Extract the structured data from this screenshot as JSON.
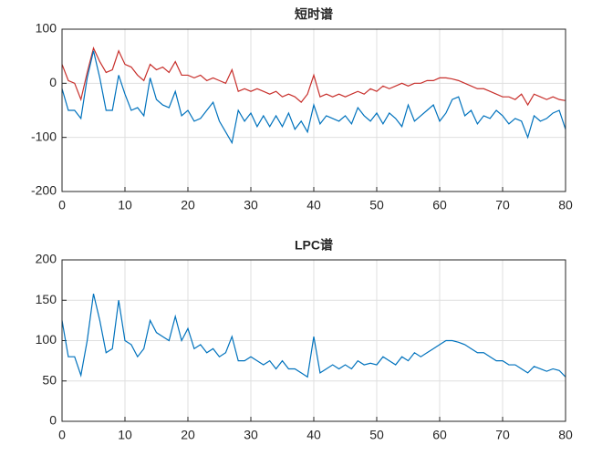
{
  "chart_data": [
    {
      "type": "line",
      "title": "短时谱",
      "x": [
        0,
        1,
        2,
        3,
        4,
        5,
        6,
        7,
        8,
        9,
        10,
        11,
        12,
        13,
        14,
        15,
        16,
        17,
        18,
        19,
        20,
        21,
        22,
        23,
        24,
        25,
        26,
        27,
        28,
        29,
        30,
        31,
        32,
        33,
        34,
        35,
        36,
        37,
        38,
        39,
        40,
        41,
        42,
        43,
        44,
        45,
        46,
        47,
        48,
        49,
        50,
        51,
        52,
        53,
        54,
        55,
        56,
        57,
        58,
        59,
        60,
        61,
        62,
        63,
        64,
        65,
        66,
        67,
        68,
        69,
        70,
        71,
        72,
        73,
        74,
        75,
        76,
        77,
        78,
        79,
        80
      ],
      "series": [
        {
          "color": "#c8302c",
          "values": [
            35,
            5,
            0,
            -30,
            20,
            65,
            40,
            20,
            25,
            60,
            35,
            30,
            15,
            5,
            35,
            25,
            30,
            20,
            40,
            15,
            15,
            10,
            15,
            5,
            10,
            5,
            0,
            25,
            -15,
            -10,
            -15,
            -10,
            -15,
            -20,
            -15,
            -25,
            -20,
            -25,
            -35,
            -20,
            15,
            -25,
            -20,
            -25,
            -20,
            -25,
            -20,
            -15,
            -20,
            -10,
            -15,
            -5,
            -10,
            -5,
            0,
            -5,
            0,
            0,
            5,
            5,
            10,
            10,
            8,
            5,
            0,
            -5,
            -10,
            -10,
            -15,
            -20,
            -25,
            -25,
            -30,
            -20,
            -40,
            -20,
            -25,
            -30,
            -25,
            -30,
            -32
          ]
        },
        {
          "color": "#0072bd",
          "values": [
            -10,
            -50,
            -50,
            -65,
            10,
            60,
            10,
            -50,
            -50,
            15,
            -20,
            -50,
            -45,
            -60,
            10,
            -30,
            -40,
            -45,
            -15,
            -60,
            -50,
            -70,
            -65,
            -50,
            -35,
            -70,
            -90,
            -110,
            -50,
            -70,
            -55,
            -80,
            -60,
            -80,
            -60,
            -80,
            -55,
            -85,
            -70,
            -90,
            -40,
            -75,
            -60,
            -65,
            -70,
            -60,
            -75,
            -45,
            -60,
            -70,
            -55,
            -75,
            -55,
            -65,
            -80,
            -40,
            -70,
            -60,
            -50,
            -40,
            -70,
            -55,
            -30,
            -25,
            -60,
            -50,
            -75,
            -60,
            -65,
            -50,
            -60,
            -75,
            -65,
            -70,
            -100,
            -60,
            -70,
            -65,
            -55,
            -50,
            -85
          ]
        }
      ],
      "xlim": [
        0,
        80
      ],
      "xticks": [
        0,
        10,
        20,
        30,
        40,
        50,
        60,
        70,
        80
      ],
      "ylim": [
        -200,
        100
      ],
      "yticks": [
        -200,
        -100,
        0,
        100
      ],
      "grid": true
    },
    {
      "type": "line",
      "title": "LPC谱",
      "x": [
        0,
        1,
        2,
        3,
        4,
        5,
        6,
        7,
        8,
        9,
        10,
        11,
        12,
        13,
        14,
        15,
        16,
        17,
        18,
        19,
        20,
        21,
        22,
        23,
        24,
        25,
        26,
        27,
        28,
        29,
        30,
        31,
        32,
        33,
        34,
        35,
        36,
        37,
        38,
        39,
        40,
        41,
        42,
        43,
        44,
        45,
        46,
        47,
        48,
        49,
        50,
        51,
        52,
        53,
        54,
        55,
        56,
        57,
        58,
        59,
        60,
        61,
        62,
        63,
        64,
        65,
        66,
        67,
        68,
        69,
        70,
        71,
        72,
        73,
        74,
        75,
        76,
        77,
        78,
        79,
        80
      ],
      "series": [
        {
          "color": "#0072bd",
          "values": [
            125,
            80,
            80,
            57,
            100,
            158,
            125,
            85,
            90,
            150,
            100,
            95,
            80,
            90,
            125,
            110,
            105,
            100,
            130,
            100,
            115,
            90,
            95,
            85,
            90,
            80,
            85,
            105,
            75,
            75,
            80,
            75,
            70,
            75,
            65,
            75,
            65,
            65,
            60,
            55,
            105,
            60,
            65,
            70,
            65,
            70,
            65,
            75,
            70,
            72,
            70,
            80,
            75,
            70,
            80,
            75,
            85,
            80,
            85,
            90,
            95,
            100,
            100,
            98,
            95,
            90,
            85,
            85,
            80,
            75,
            75,
            70,
            70,
            65,
            60,
            68,
            65,
            62,
            65,
            63,
            55
          ]
        }
      ],
      "xlim": [
        0,
        80
      ],
      "xticks": [
        0,
        10,
        20,
        30,
        40,
        50,
        60,
        70,
        80
      ],
      "ylim": [
        0,
        200
      ],
      "yticks": [
        0,
        50,
        100,
        150,
        200
      ],
      "grid": true
    }
  ]
}
